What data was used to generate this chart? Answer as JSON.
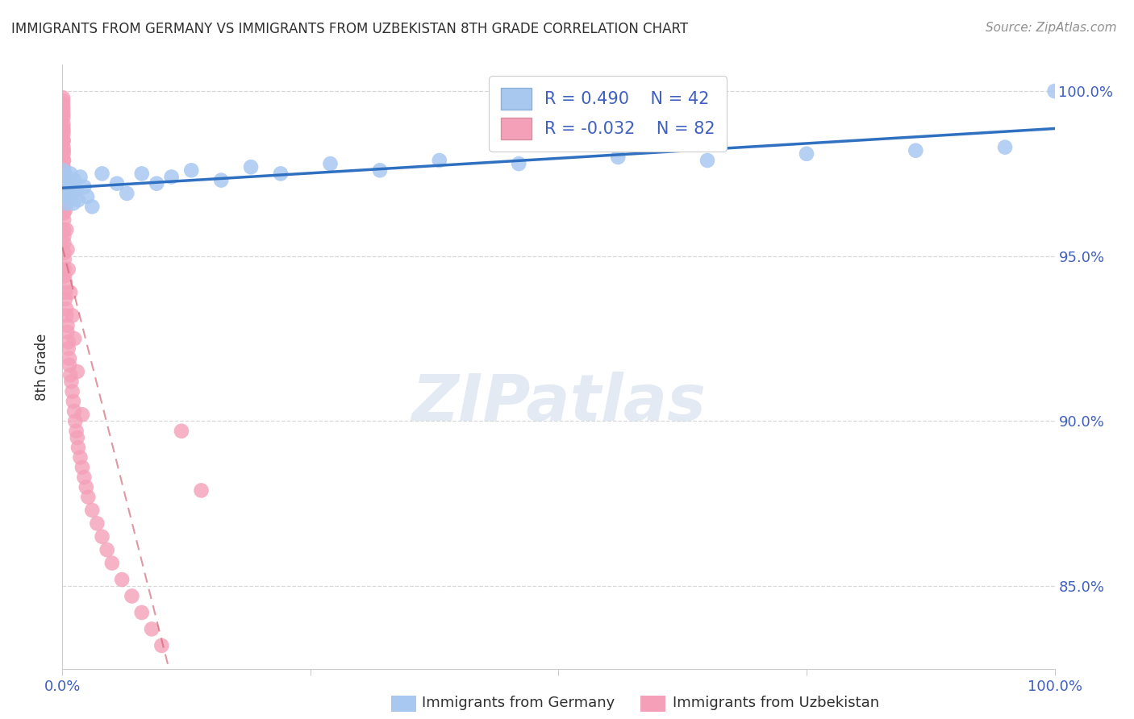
{
  "title": "IMMIGRANTS FROM GERMANY VS IMMIGRANTS FROM UZBEKISTAN 8TH GRADE CORRELATION CHART",
  "source": "Source: ZipAtlas.com",
  "ylabel": "8th Grade",
  "legend_germany_label": "Immigrants from Germany",
  "legend_uzbekistan_label": "Immigrants from Uzbekistan",
  "r_germany": 0.49,
  "n_germany": 42,
  "r_uzbekistan": -0.032,
  "n_uzbekistan": 82,
  "germany_color": "#a8c8f0",
  "germany_line_color": "#3070c0",
  "uzbekistan_color": "#f4a0b8",
  "uzbekistan_line_color": "#d06070",
  "background_color": "#ffffff",
  "title_color": "#303030",
  "source_color": "#909090",
  "axis_label_color": "#4060c0",
  "grid_color": "#d8d8d8",
  "xlim": [
    0.0,
    1.0
  ],
  "ylim": [
    0.825,
    1.008
  ],
  "yticks": [
    0.85,
    0.9,
    0.95,
    1.0
  ],
  "ytick_labels": [
    "85.0%",
    "90.0%",
    "95.0%",
    "100.0%"
  ],
  "xtick_positions": [
    0.0,
    0.25,
    0.5,
    0.75,
    1.0
  ],
  "xtick_labels": [
    "0.0%",
    "",
    "",
    "",
    "100.0%"
  ],
  "germany_x": [
    0.0008,
    0.001,
    0.0012,
    0.0015,
    0.0018,
    0.002,
    0.003,
    0.004,
    0.005,
    0.006,
    0.007,
    0.008,
    0.009,
    0.01,
    0.011,
    0.012,
    0.014,
    0.016,
    0.018,
    0.022,
    0.025,
    0.03,
    0.04,
    0.055,
    0.065,
    0.08,
    0.095,
    0.11,
    0.13,
    0.16,
    0.19,
    0.22,
    0.27,
    0.32,
    0.38,
    0.46,
    0.56,
    0.65,
    0.75,
    0.86,
    0.95,
    1.0
  ],
  "germany_y": [
    0.976,
    0.974,
    0.971,
    0.968,
    0.97,
    0.972,
    0.969,
    0.966,
    0.974,
    0.971,
    0.968,
    0.975,
    0.972,
    0.969,
    0.966,
    0.973,
    0.97,
    0.967,
    0.974,
    0.971,
    0.968,
    0.965,
    0.975,
    0.972,
    0.969,
    0.975,
    0.972,
    0.974,
    0.976,
    0.973,
    0.977,
    0.975,
    0.978,
    0.976,
    0.979,
    0.978,
    0.98,
    0.979,
    0.981,
    0.982,
    0.983,
    1.0
  ],
  "uzbekistan_x": [
    0.0005,
    0.0005,
    0.0006,
    0.0007,
    0.0007,
    0.0008,
    0.0008,
    0.0009,
    0.001,
    0.001,
    0.001,
    0.001,
    0.001,
    0.0012,
    0.0012,
    0.0013,
    0.0014,
    0.0015,
    0.0015,
    0.0016,
    0.0017,
    0.0018,
    0.002,
    0.002,
    0.002,
    0.003,
    0.003,
    0.003,
    0.004,
    0.004,
    0.005,
    0.005,
    0.006,
    0.006,
    0.007,
    0.007,
    0.008,
    0.009,
    0.01,
    0.011,
    0.012,
    0.013,
    0.014,
    0.015,
    0.016,
    0.018,
    0.02,
    0.022,
    0.024,
    0.026,
    0.03,
    0.035,
    0.04,
    0.045,
    0.05,
    0.06,
    0.07,
    0.08,
    0.09,
    0.1,
    0.12,
    0.14,
    0.0005,
    0.0006,
    0.0007,
    0.0008,
    0.001,
    0.001,
    0.0012,
    0.0014,
    0.0016,
    0.0018,
    0.002,
    0.003,
    0.004,
    0.005,
    0.006,
    0.008,
    0.01,
    0.012,
    0.015,
    0.02
  ],
  "uzbekistan_y": [
    0.998,
    0.996,
    0.994,
    0.992,
    0.989,
    0.987,
    0.985,
    0.983,
    0.981,
    0.979,
    0.977,
    0.974,
    0.972,
    0.97,
    0.967,
    0.965,
    0.963,
    0.961,
    0.958,
    0.956,
    0.954,
    0.951,
    0.949,
    0.946,
    0.944,
    0.942,
    0.939,
    0.937,
    0.934,
    0.932,
    0.929,
    0.927,
    0.924,
    0.922,
    0.919,
    0.917,
    0.914,
    0.912,
    0.909,
    0.906,
    0.903,
    0.9,
    0.897,
    0.895,
    0.892,
    0.889,
    0.886,
    0.883,
    0.88,
    0.877,
    0.873,
    0.869,
    0.865,
    0.861,
    0.857,
    0.852,
    0.847,
    0.842,
    0.837,
    0.832,
    0.897,
    0.879,
    0.997,
    0.995,
    0.993,
    0.99,
    0.988,
    0.985,
    0.982,
    0.979,
    0.976,
    0.973,
    0.97,
    0.964,
    0.958,
    0.952,
    0.946,
    0.939,
    0.932,
    0.925,
    0.915,
    0.902
  ]
}
